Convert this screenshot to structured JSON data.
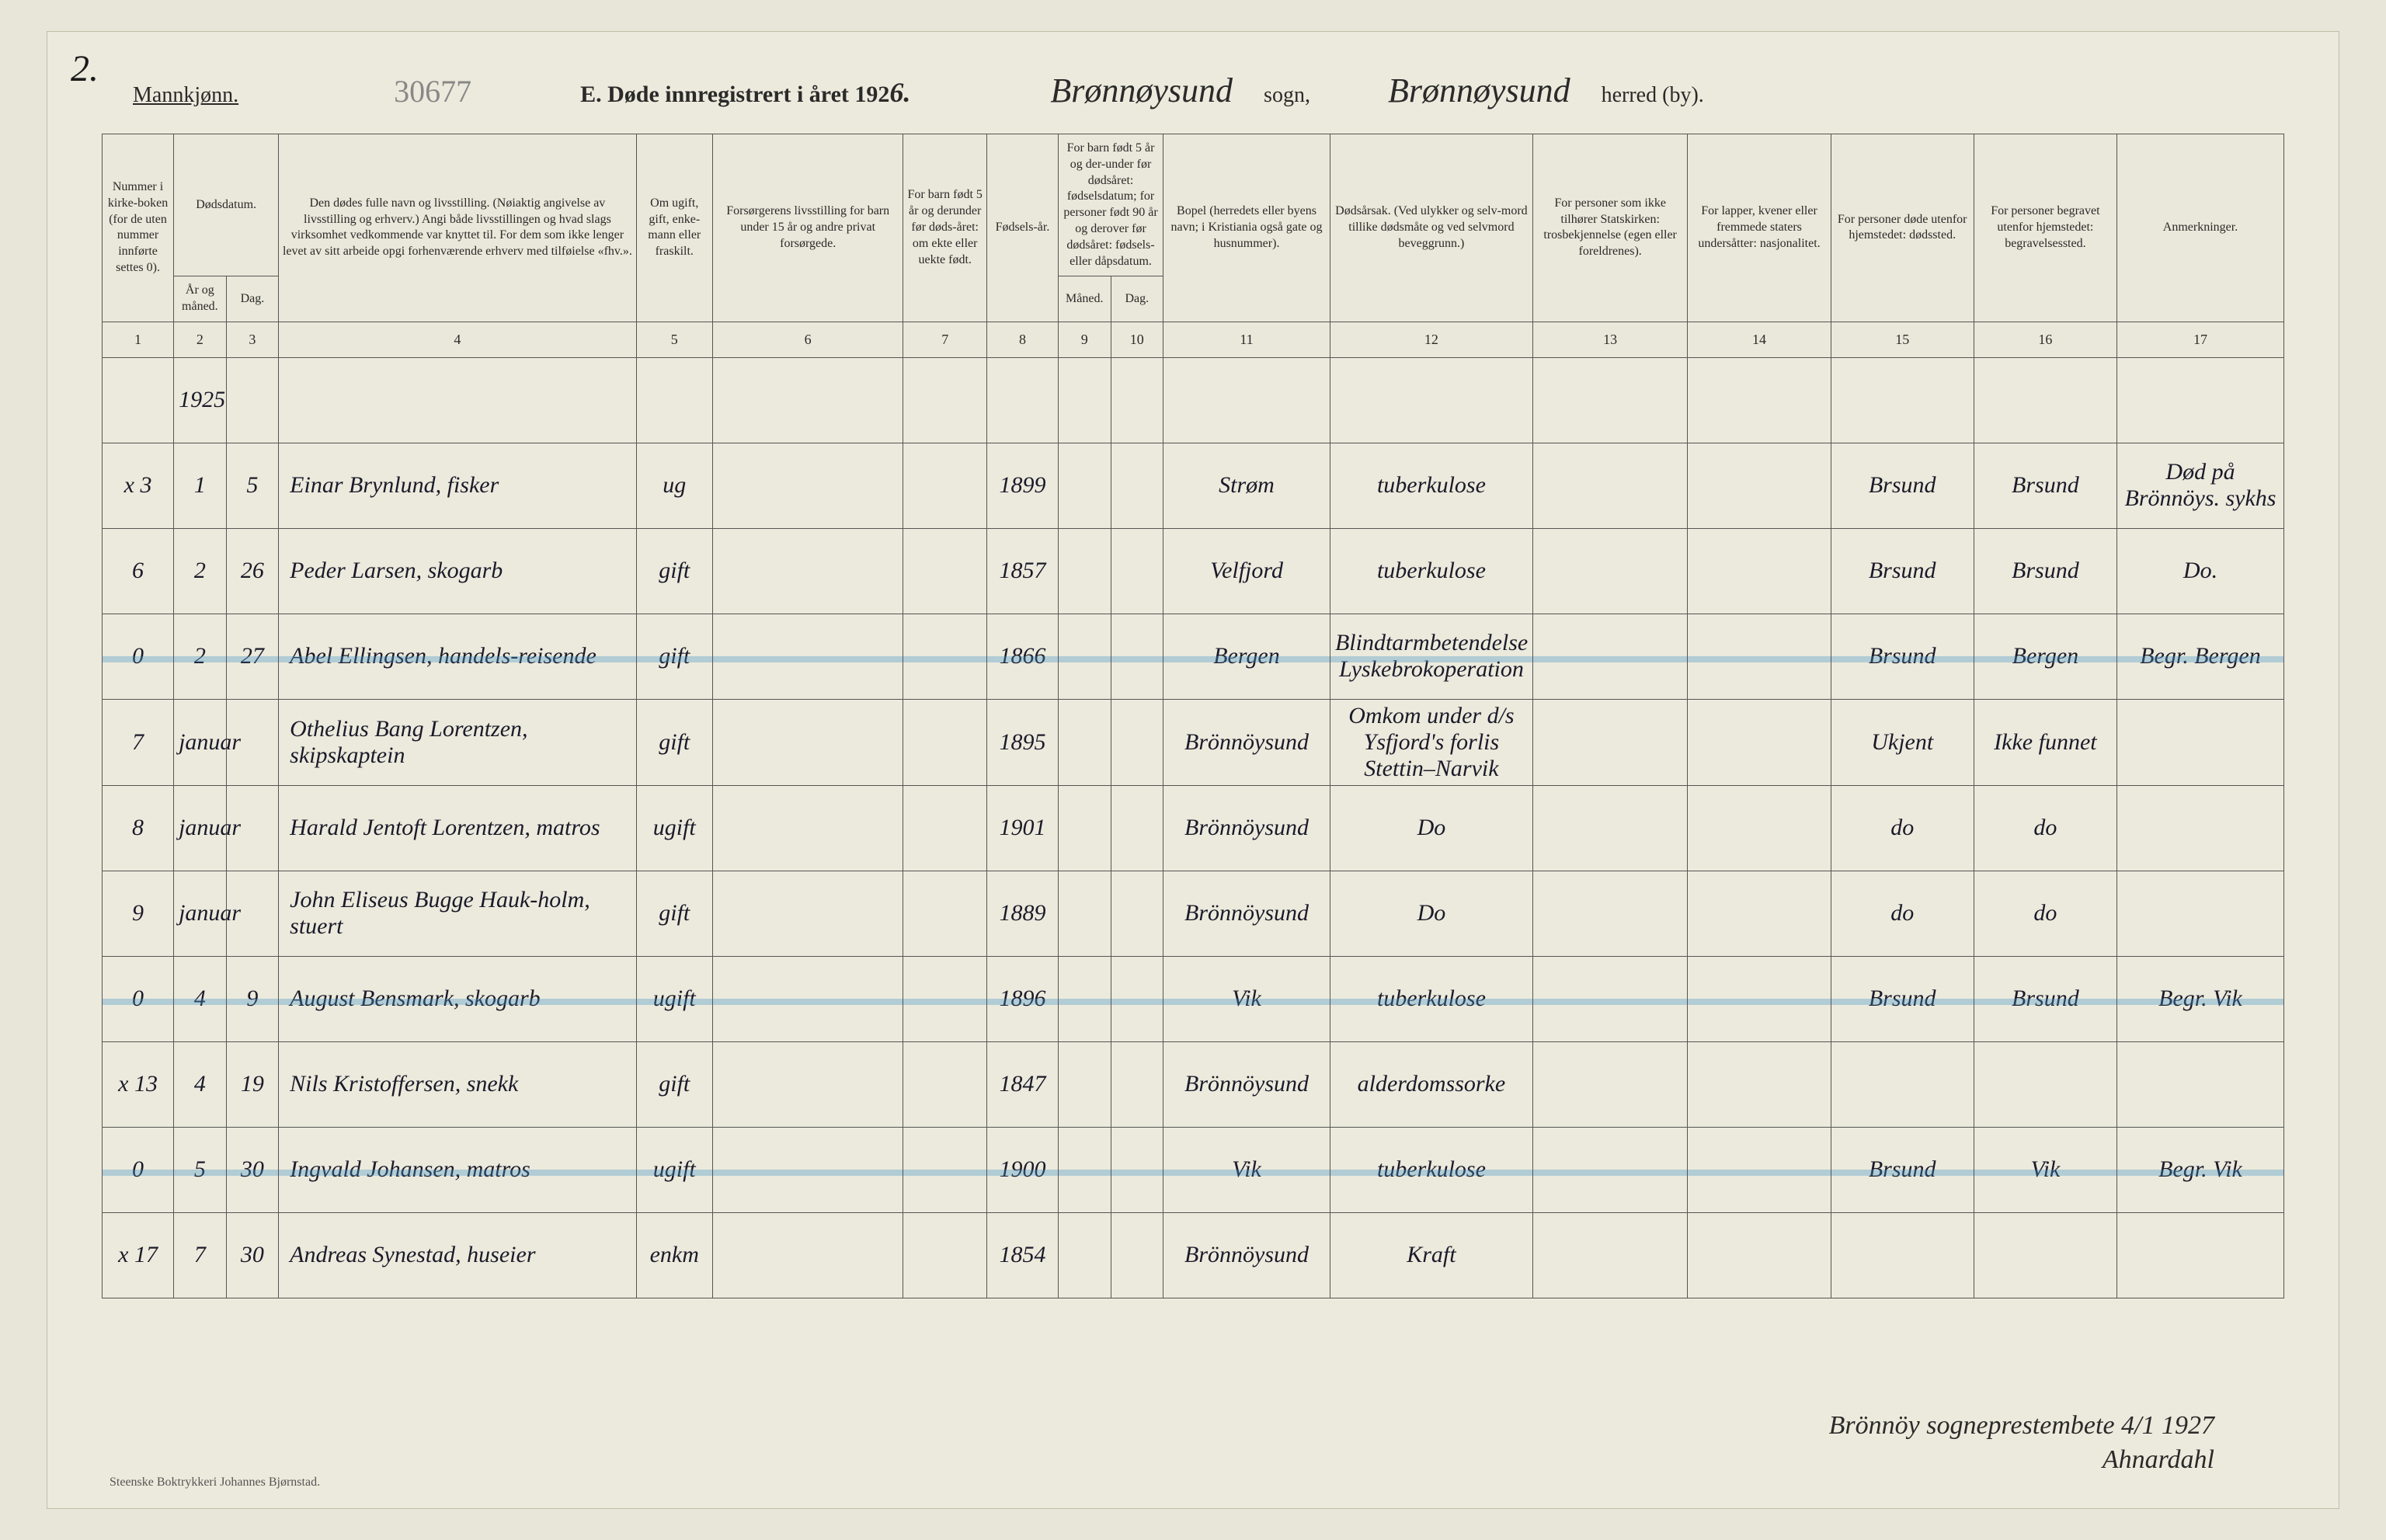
{
  "page_number_handwritten": "2.",
  "archive_number": "30677",
  "gender_label": "Mannkjønn.",
  "form_title_prefix": "E.  Døde innregistrert i året 192",
  "form_year_digit": "6.",
  "parish_name": "Brønnøysund",
  "sogn_label": "sogn,",
  "district_name": "Brønnøysund",
  "by_label": "herred (by).",
  "printer_credit": "Steenske Boktrykkeri Johannes Bjørnstad.",
  "signature_line1": "Brönnöy sogneprestembete 4/1 1927",
  "signature_line2": "Ahnardahl",
  "headers": {
    "col1": "Nummer i kirke-boken (for de uten nummer innførte settes 0).",
    "col2_top": "Dødsdatum.",
    "col2_ar": "År og måned.",
    "col2_dag": "Dag.",
    "col4": "Den dødes fulle navn og livsstilling. (Nøiaktig angivelse av livsstilling og erhverv.) Angi både livsstillingen og hvad slags virksomhet vedkommende var knyttet til. For dem som ikke lenger levet av sitt arbeide opgi forhenværende erhverv med tilføielse «fhv.».",
    "col5": "Om ugift, gift, enke-mann eller fraskilt.",
    "col6": "Forsørgerens livsstilling for barn under 15 år og andre privat forsørgede.",
    "col7": "For barn født 5 år og derunder før døds-året: om ekte eller uekte født.",
    "col8": "Fødsels-år.",
    "col9_top": "For barn født 5 år og der-under før dødsåret: fødselsdatum; for personer født 90 år og derover før dødsåret: fødsels- eller dåpsdatum.",
    "col9_m": "Måned.",
    "col9_d": "Dag.",
    "col11": "Bopel (herredets eller byens navn; i Kristiania også gate og husnummer).",
    "col12": "Dødsårsak. (Ved ulykker og selv-mord tillike dødsmåte og ved selvmord beveggrunn.)",
    "col13": "For personer som ikke tilhører Statskirken: trosbekjennelse (egen eller foreldrenes).",
    "col14": "For lapper, kvener eller fremmede staters undersåtter: nasjonalitet.",
    "col15": "For personer døde utenfor hjemstedet: dødssted.",
    "col16": "For personer begravet utenfor hjemstedet: begravelsessted.",
    "col17": "Anmerkninger."
  },
  "colnums": [
    "1",
    "2",
    "3",
    "4",
    "5",
    "6",
    "7",
    "8",
    "9",
    "10",
    "11",
    "12",
    "13",
    "14",
    "15",
    "16",
    "17"
  ],
  "year_row_label": "1925",
  "rows": [
    {
      "num": "x 3",
      "ar": "1",
      "dag": "5",
      "name": "Einar Brynlund, fisker",
      "status": "ug",
      "provider": "",
      "ekte": "",
      "birth": "1899",
      "bm": "",
      "bd": "",
      "bopel": "Strøm",
      "cause": "tuberkulose",
      "rel": "",
      "nat": "",
      "death": "Brsund",
      "burial": "Brsund",
      "notes": "Død på Brönnöys. sykhs",
      "hl": false
    },
    {
      "num": "6",
      "ar": "2",
      "dag": "26",
      "name": "Peder Larsen, skogarb",
      "status": "gift",
      "provider": "",
      "ekte": "",
      "birth": "1857",
      "bm": "",
      "bd": "",
      "bopel": "Velfjord",
      "cause": "tuberkulose",
      "rel": "",
      "nat": "",
      "death": "Brsund",
      "burial": "Brsund",
      "notes": "Do.",
      "hl": false
    },
    {
      "num": "0",
      "ar": "2",
      "dag": "27",
      "name": "Abel Ellingsen, handels-reisende",
      "status": "gift",
      "provider": "",
      "ekte": "",
      "birth": "1866",
      "bm": "",
      "bd": "",
      "bopel": "Bergen",
      "cause": "Blindtarmbetendelse Lyskebrokoperation",
      "rel": "",
      "nat": "",
      "death": "Brsund",
      "burial": "Bergen",
      "notes": "Begr. Bergen",
      "hl": true
    },
    {
      "num": "7",
      "ar": "januar",
      "dag": "",
      "name": "Othelius Bang Lorentzen, skipskaptein",
      "status": "gift",
      "provider": "",
      "ekte": "",
      "birth": "1895",
      "bm": "",
      "bd": "",
      "bopel": "Brönnöysund",
      "cause": "Omkom under d/s Ysfjord's forlis Stettin–Narvik",
      "rel": "",
      "nat": "",
      "death": "Ukjent",
      "burial": "Ikke funnet",
      "notes": "",
      "hl": false
    },
    {
      "num": "8",
      "ar": "januar",
      "dag": "",
      "name": "Harald Jentoft Lorentzen, matros",
      "status": "ugift",
      "provider": "",
      "ekte": "",
      "birth": "1901",
      "bm": "",
      "bd": "",
      "bopel": "Brönnöysund",
      "cause": "Do",
      "rel": "",
      "nat": "",
      "death": "do",
      "burial": "do",
      "notes": "",
      "hl": false
    },
    {
      "num": "9",
      "ar": "januar",
      "dag": "",
      "name": "John Eliseus Bugge Hauk-holm, stuert",
      "status": "gift",
      "provider": "",
      "ekte": "",
      "birth": "1889",
      "bm": "",
      "bd": "",
      "bopel": "Brönnöysund",
      "cause": "Do",
      "rel": "",
      "nat": "",
      "death": "do",
      "burial": "do",
      "notes": "",
      "hl": false
    },
    {
      "num": "0",
      "ar": "4",
      "dag": "9",
      "name": "August Bensmark, skogarb",
      "status": "ugift",
      "provider": "",
      "ekte": "",
      "birth": "1896",
      "bm": "",
      "bd": "",
      "bopel": "Vik",
      "cause": "tuberkulose",
      "rel": "",
      "nat": "",
      "death": "Brsund",
      "burial": "Brsund",
      "notes": "Begr. Vik",
      "hl": true
    },
    {
      "num": "x 13",
      "ar": "4",
      "dag": "19",
      "name": "Nils Kristoffersen, snekk",
      "status": "gift",
      "provider": "",
      "ekte": "",
      "birth": "1847",
      "bm": "",
      "bd": "",
      "bopel": "Brönnöysund",
      "cause": "alderdomssorke",
      "rel": "",
      "nat": "",
      "death": "",
      "burial": "",
      "notes": "",
      "hl": false
    },
    {
      "num": "0",
      "ar": "5",
      "dag": "30",
      "name": "Ingvald Johansen, matros",
      "status": "ugift",
      "provider": "",
      "ekte": "",
      "birth": "1900",
      "bm": "",
      "bd": "",
      "bopel": "Vik",
      "cause": "tuberkulose",
      "rel": "",
      "nat": "",
      "death": "Brsund",
      "burial": "Vik",
      "notes": "Begr. Vik",
      "hl": true
    },
    {
      "num": "x 17",
      "ar": "7",
      "dag": "30",
      "name": "Andreas Synestad, huseier",
      "status": "enkm",
      "provider": "",
      "ekte": "",
      "birth": "1854",
      "bm": "",
      "bd": "",
      "bopel": "Brönnöysund",
      "cause": "Kraft",
      "rel": "",
      "nat": "",
      "death": "",
      "burial": "",
      "notes": "",
      "hl": false
    }
  ],
  "colors": {
    "paper": "#eceadc",
    "ink": "#1a1a2a",
    "rule": "#555555",
    "highlight": "rgba(70,150,200,0.35)"
  }
}
